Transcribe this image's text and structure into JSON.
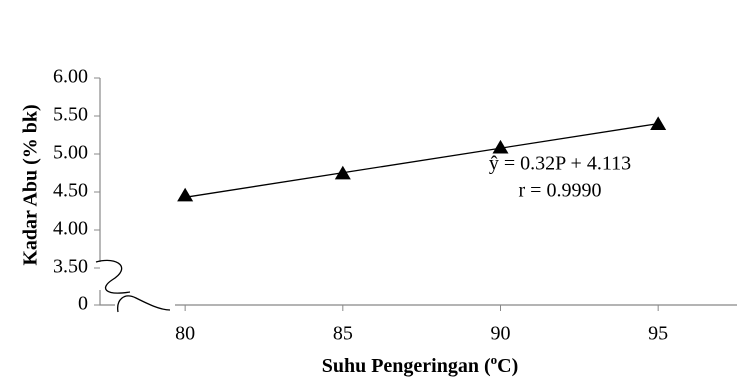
{
  "chart_data": {
    "type": "scatter",
    "y_label": "Kadar Abu (% bk)",
    "x_label": [
      "Suhu Pengeringan (",
      "o",
      "C)"
    ],
    "annotations": [
      "ŷ = 0.32P + 4.113",
      "r = 0.9990"
    ],
    "x": [
      80,
      85,
      90,
      95
    ],
    "values": [
      4.45,
      4.74,
      5.08,
      5.39
    ],
    "color": "#000000",
    "marker": "triangle",
    "trendline": {
      "x": [
        80,
        95
      ],
      "values": [
        4.43,
        5.4
      ]
    },
    "xlim": [
      77.3,
      97.5
    ],
    "xticks": [
      80,
      85,
      90,
      95
    ],
    "ylim": [
      0,
      6
    ],
    "ybreak": 3.5,
    "yticks": [
      {
        "value": 0,
        "label": "0"
      },
      {
        "value": 3.5,
        "label": "3.50"
      },
      {
        "value": 4,
        "label": "4.00"
      },
      {
        "value": 4.5,
        "label": "4.50"
      },
      {
        "value": 5,
        "label": "5.00"
      },
      {
        "value": 5.5,
        "label": "5.50"
      },
      {
        "value": 6,
        "label": "6.00"
      }
    ]
  }
}
